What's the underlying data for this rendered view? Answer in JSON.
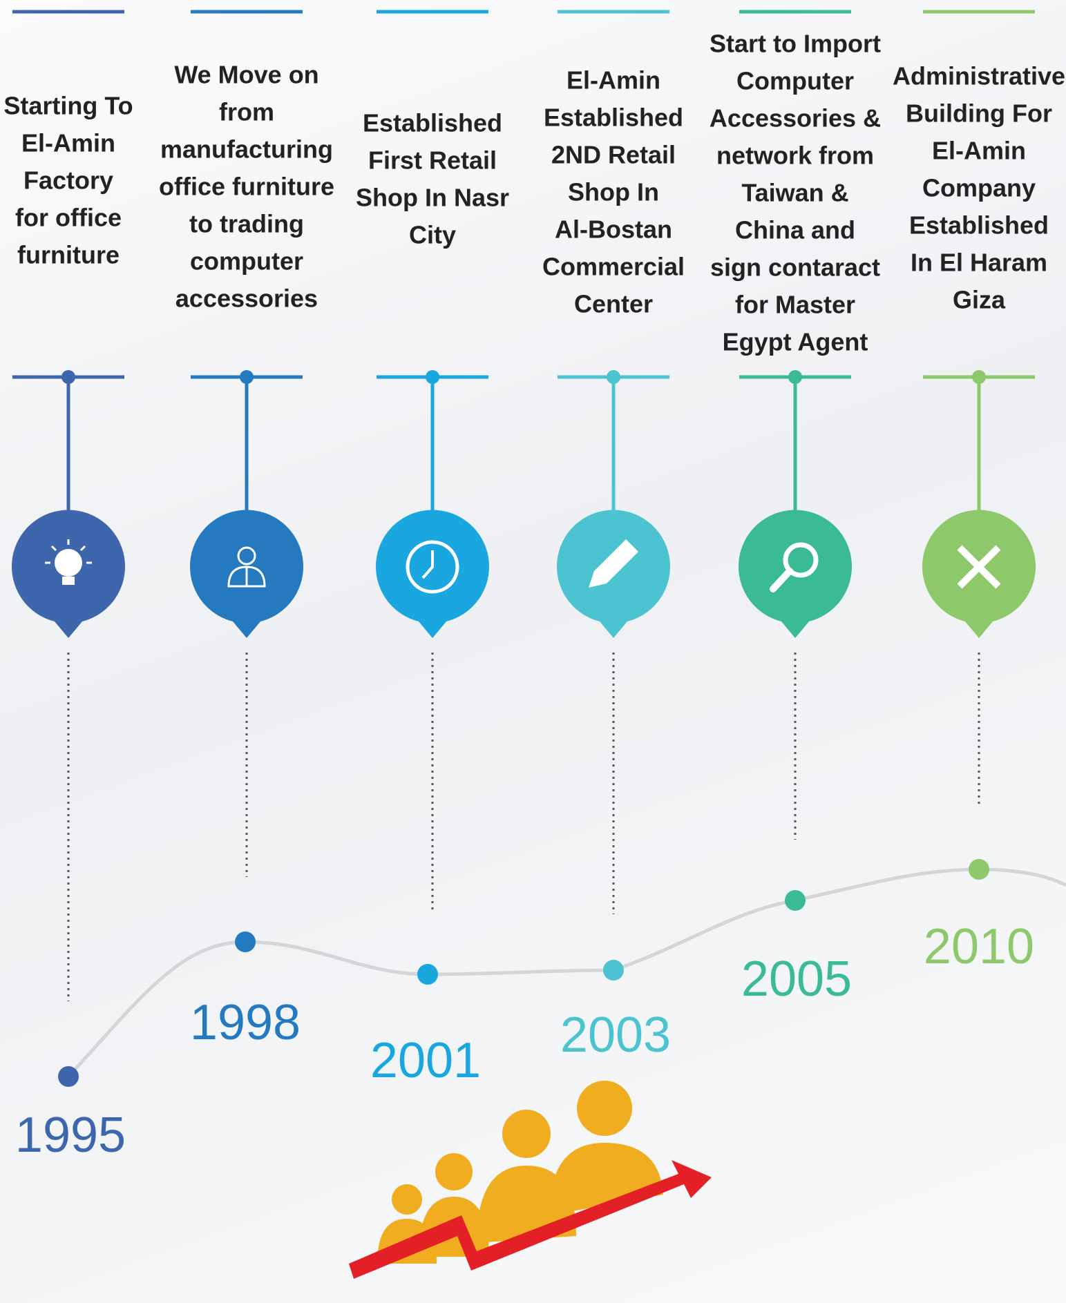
{
  "timeline": [
    {
      "description": [
        "Starting To",
        "El-Amin",
        "Factory",
        "for office",
        "furniture"
      ],
      "year": "1995"
    },
    {
      "description": [
        "We Move on",
        "from",
        "manufacturing",
        "office furniture",
        "to trading",
        "computer",
        "accessories"
      ],
      "year": "1998"
    },
    {
      "description": [
        "Established",
        "First Retail",
        "Shop In Nasr",
        "City"
      ],
      "year": "2001"
    },
    {
      "description": [
        "El-Amin",
        "Established",
        "2ND Retail",
        "Shop In",
        "Al-Bostan",
        "Commercial",
        "Center"
      ],
      "year": "2003"
    },
    {
      "description": [
        "Start to Import",
        "Computer",
        "Accessories &",
        "network from",
        "Taiwan &",
        "China and",
        "sign contaract",
        "for Master",
        "Egypt Agent"
      ],
      "year": "2005"
    },
    {
      "description": [
        "Administrative",
        "Building For",
        "El-Amin",
        "Company",
        "Established",
        "In El Haram",
        "Giza"
      ],
      "year": "2010"
    }
  ]
}
